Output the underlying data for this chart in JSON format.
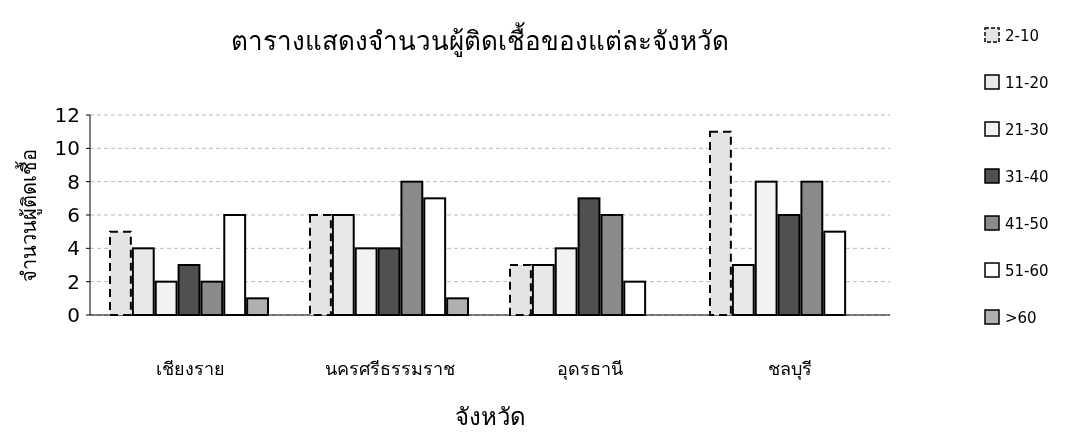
{
  "chart_data": {
    "type": "bar",
    "title": "ตารางแสดงจำนวนผู้ติดเชื้อของแต่ละจังหวัด",
    "xlabel": "จังหวัด",
    "ylabel": "จำนวนผู้ติดเชื้อ",
    "categories": [
      "เชียงราย",
      "นครศรีธรรมราช",
      "อุดรธานี",
      "ชลบุรี"
    ],
    "series": [
      {
        "name": "2-10",
        "color": "#e4e4e4",
        "line_style": "dashed",
        "values": [
          5,
          6,
          3,
          11
        ]
      },
      {
        "name": "11-20",
        "color": "#e8e8e8",
        "values": [
          4,
          6,
          3,
          3
        ]
      },
      {
        "name": "21-30",
        "color": "#f2f2f2",
        "values": [
          2,
          4,
          4,
          8
        ]
      },
      {
        "name": "31-40",
        "color": "#505050",
        "values": [
          3,
          4,
          7,
          6
        ]
      },
      {
        "name": "41-50",
        "color": "#8a8a8a",
        "values": [
          2,
          8,
          6,
          8
        ]
      },
      {
        "name": "51-60",
        "color": "#ffffff",
        "values": [
          6,
          7,
          2,
          5
        ]
      },
      {
        "name": ">60",
        "color": "#b0b0b0",
        "values": [
          1,
          1,
          null,
          null
        ]
      }
    ],
    "ylim": [
      0,
      12
    ],
    "yticks": [
      0,
      2,
      4,
      6,
      8,
      10,
      12
    ],
    "grid": "y",
    "legend": "right"
  }
}
